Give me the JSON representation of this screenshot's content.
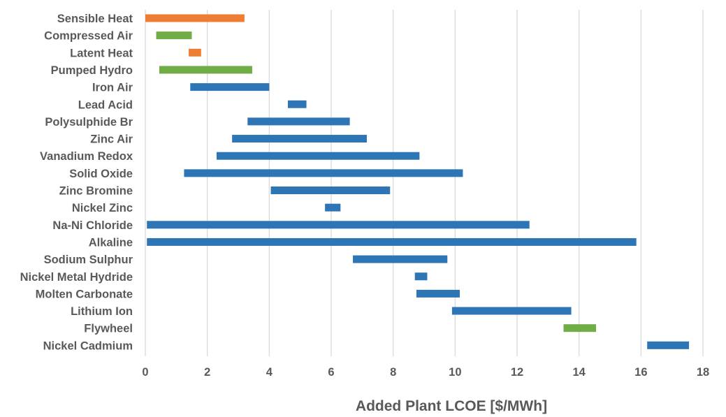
{
  "chart_data": {
    "type": "bar",
    "orientation": "horizontal-floating",
    "title": "",
    "xlabel": "Added Plant LCOE [$/MWh]",
    "ylabel": "",
    "xlim": [
      0,
      18
    ],
    "xticks": [
      0,
      2,
      4,
      6,
      8,
      10,
      12,
      14,
      16,
      18
    ],
    "grid": true,
    "legend": "none",
    "colors": {
      "thermal": "#ed7d31",
      "mechanical": "#70ad47",
      "electrochemical": "#2e75b6"
    },
    "categories": [
      "Sensible Heat",
      "Compressed Air",
      "Latent Heat",
      "Pumped Hydro",
      "Iron Air",
      "Lead Acid",
      "Polysulphide Br",
      "Zinc Air",
      "Vanadium Redox",
      "Solid Oxide",
      "Zinc Bromine",
      "Nickel Zinc",
      "Na-Ni Chloride",
      "Alkaline",
      "Sodium Sulphur",
      "Nickel Metal Hydride",
      "Molten Carbonate",
      "Lithium Ion",
      "Flywheel",
      "Nickel Cadmium"
    ],
    "ranges": [
      {
        "name": "Sensible Heat",
        "low": 0.0,
        "high": 3.2,
        "group": "thermal"
      },
      {
        "name": "Compressed Air",
        "low": 0.35,
        "high": 1.5,
        "group": "mechanical"
      },
      {
        "name": "Latent Heat",
        "low": 1.4,
        "high": 1.8,
        "group": "thermal"
      },
      {
        "name": "Pumped Hydro",
        "low": 0.45,
        "high": 3.45,
        "group": "mechanical"
      },
      {
        "name": "Iron Air",
        "low": 1.45,
        "high": 4.0,
        "group": "electrochemical"
      },
      {
        "name": "Lead Acid",
        "low": 4.6,
        "high": 5.2,
        "group": "electrochemical"
      },
      {
        "name": "Polysulphide Br",
        "low": 3.3,
        "high": 6.6,
        "group": "electrochemical"
      },
      {
        "name": "Zinc Air",
        "low": 2.8,
        "high": 7.15,
        "group": "electrochemical"
      },
      {
        "name": "Vanadium Redox",
        "low": 2.3,
        "high": 8.85,
        "group": "electrochemical"
      },
      {
        "name": "Solid Oxide",
        "low": 1.25,
        "high": 10.25,
        "group": "electrochemical"
      },
      {
        "name": "Zinc Bromine",
        "low": 4.05,
        "high": 7.9,
        "group": "electrochemical"
      },
      {
        "name": "Nickel Zinc",
        "low": 5.8,
        "high": 6.3,
        "group": "electrochemical"
      },
      {
        "name": "Na-Ni Chloride",
        "low": 0.05,
        "high": 12.4,
        "group": "electrochemical"
      },
      {
        "name": "Alkaline",
        "low": 0.05,
        "high": 15.85,
        "group": "electrochemical"
      },
      {
        "name": "Sodium Sulphur",
        "low": 6.7,
        "high": 9.75,
        "group": "electrochemical"
      },
      {
        "name": "Nickel Metal Hydride",
        "low": 8.7,
        "high": 9.1,
        "group": "electrochemical"
      },
      {
        "name": "Molten Carbonate",
        "low": 8.75,
        "high": 10.15,
        "group": "electrochemical"
      },
      {
        "name": "Lithium Ion",
        "low": 9.9,
        "high": 13.75,
        "group": "electrochemical"
      },
      {
        "name": "Flywheel",
        "low": 13.5,
        "high": 14.55,
        "group": "mechanical"
      },
      {
        "name": "Nickel Cadmium",
        "low": 16.2,
        "high": 17.55,
        "group": "electrochemical"
      }
    ]
  }
}
